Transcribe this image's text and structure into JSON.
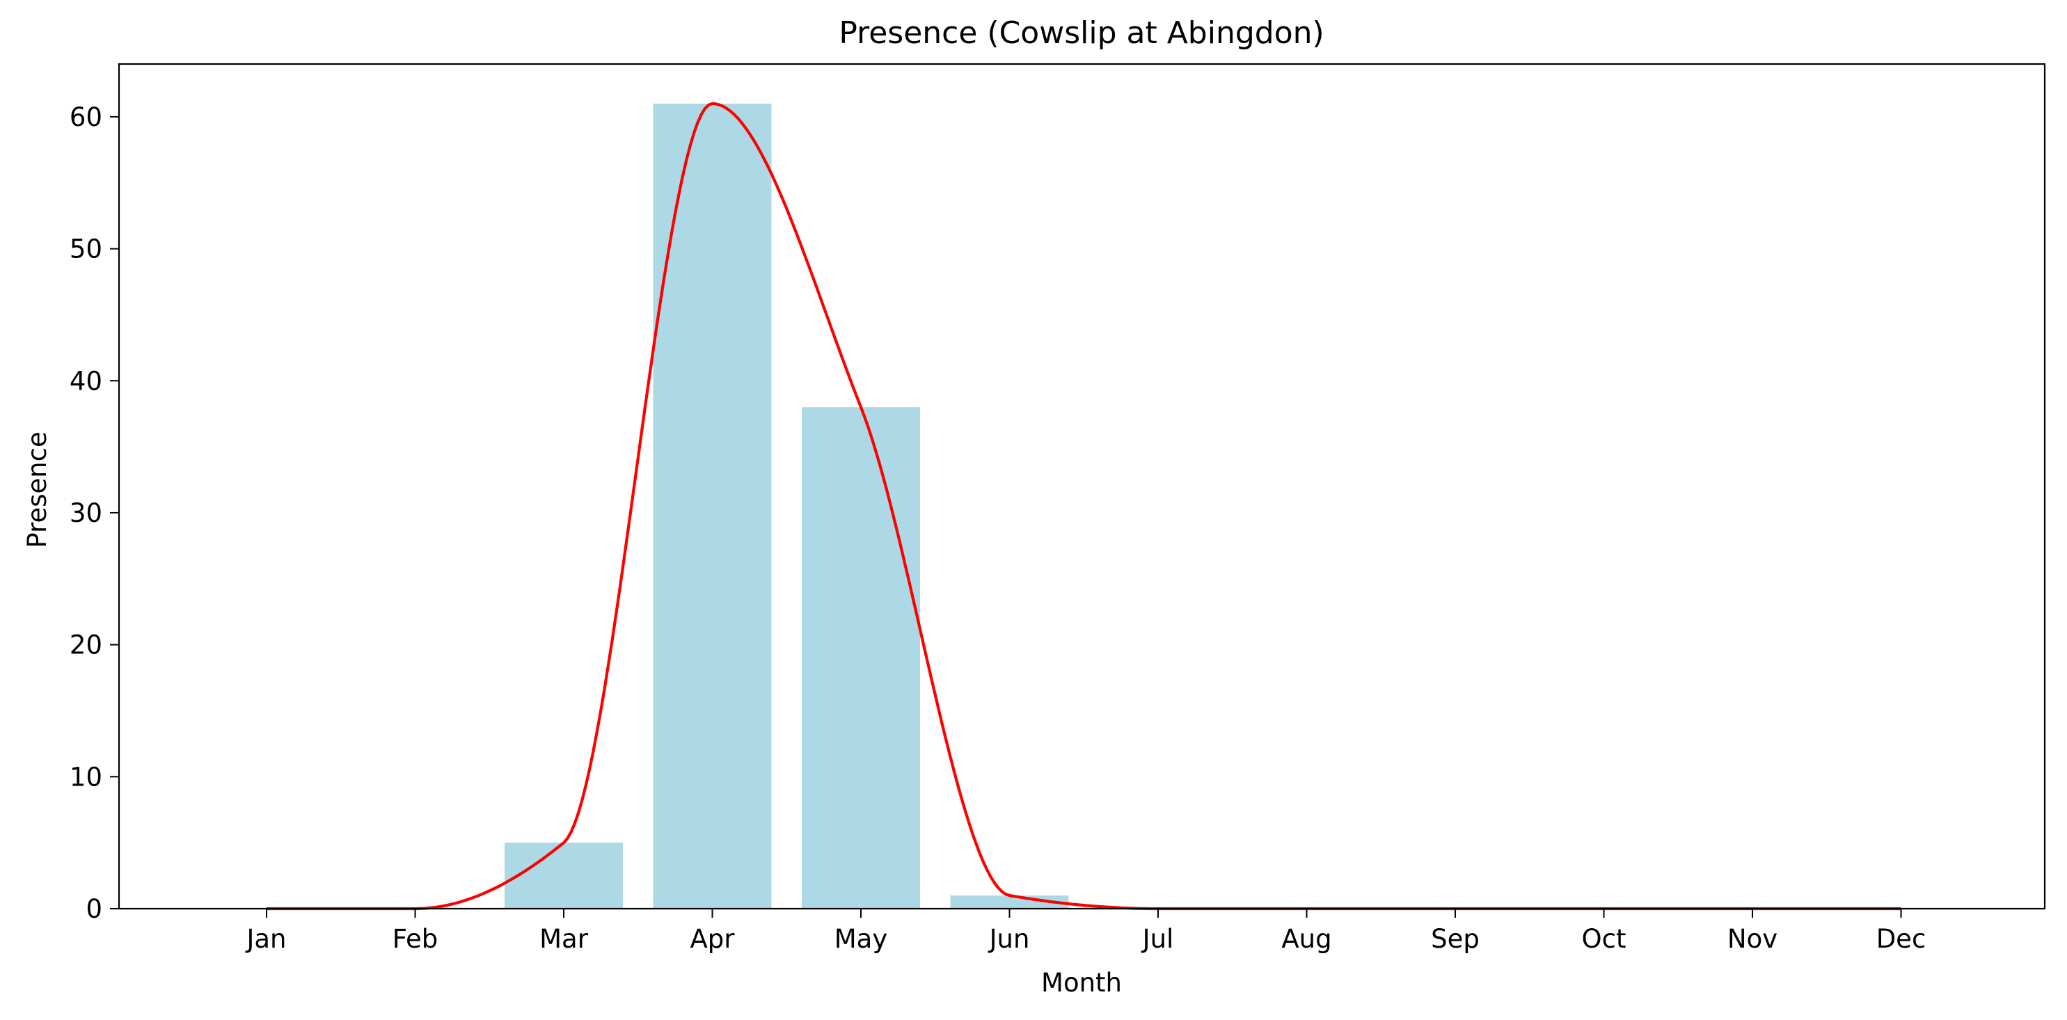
{
  "chart_data": {
    "type": "bar",
    "title": "Presence (Cowslip at Abingdon)",
    "xlabel": "Month",
    "ylabel": "Presence",
    "categories": [
      "Jan",
      "Feb",
      "Mar",
      "Apr",
      "May",
      "Jun",
      "Jul",
      "Aug",
      "Sep",
      "Oct",
      "Nov",
      "Dec"
    ],
    "values": [
      0,
      0,
      5,
      61,
      38,
      1,
      0,
      0,
      0,
      0,
      0,
      0
    ],
    "overlay_line": {
      "type": "smoothed-line",
      "values": [
        0,
        0,
        5,
        61,
        38,
        1,
        0,
        0,
        0,
        0,
        0,
        0
      ]
    },
    "ylim": [
      0,
      64
    ],
    "yticks": [
      0,
      10,
      20,
      30,
      40,
      50,
      60
    ],
    "grid": false,
    "legend": "none",
    "colors": {
      "bar": "#add8e6",
      "line": "#ff0000",
      "axis": "#000000"
    }
  }
}
